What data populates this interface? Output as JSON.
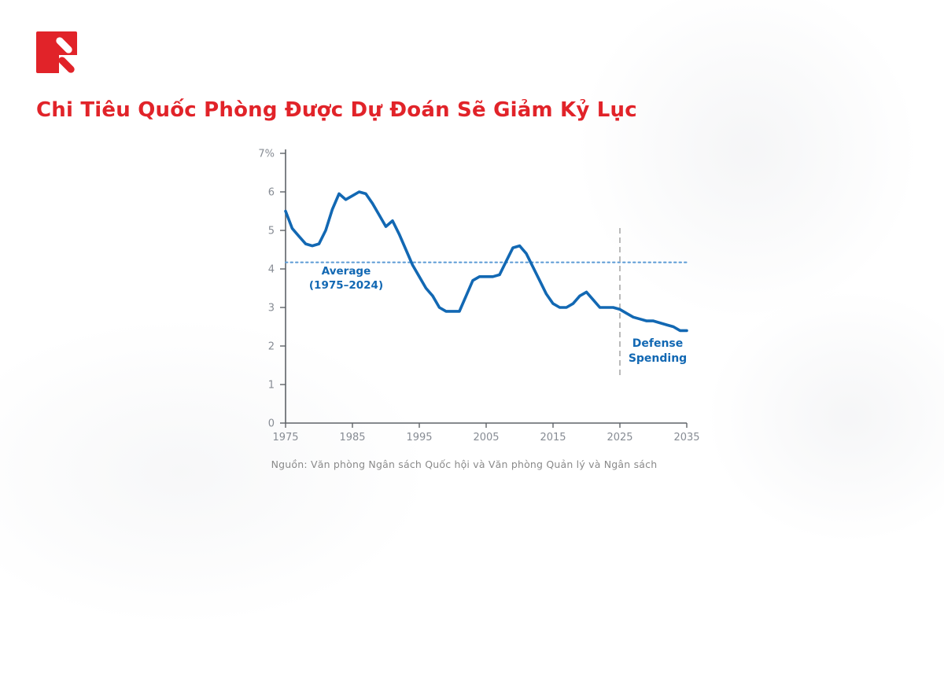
{
  "header": {
    "title": "Chi Tiêu Quốc Phòng Được Dự Đoán Sẽ Giảm Kỷ Lục"
  },
  "colors": {
    "brand_red": "#e12329",
    "line_blue": "#1268b3",
    "average_blue": "#5b9bd5",
    "divider_gray": "#b3b3b3",
    "axis_gray": "#5f6368",
    "tick_label_gray": "#878c94"
  },
  "source": {
    "text": "Nguồn: Văn phòng Ngân sách Quốc hội và Văn phòng Quản lý và Ngân sách"
  },
  "chart_data": {
    "type": "line",
    "title": "",
    "xlabel": "",
    "ylabel": "",
    "xlim": [
      1975,
      2035
    ],
    "ylim": [
      0,
      7
    ],
    "grid": false,
    "x_ticks": [
      1975,
      1985,
      1995,
      2005,
      2015,
      2025,
      2035
    ],
    "y_ticks": [
      0,
      1,
      2,
      3,
      4,
      5,
      6,
      7
    ],
    "y_tick_labels": [
      "0",
      "1",
      "2",
      "3",
      "4",
      "5",
      "6",
      "7%"
    ],
    "average_line": {
      "value": 4.17,
      "style": "dotted",
      "label": "Average",
      "sublabel": "(1975–2024)"
    },
    "projection_divider_year": 2025,
    "series_label_lines": [
      "Defense",
      "Spending"
    ],
    "series": [
      {
        "name": "Defense Spending",
        "x": [
          1975,
          1976,
          1977,
          1978,
          1979,
          1980,
          1981,
          1982,
          1983,
          1984,
          1985,
          1986,
          1987,
          1988,
          1989,
          1990,
          1991,
          1992,
          1993,
          1994,
          1995,
          1996,
          1997,
          1998,
          1999,
          2000,
          2001,
          2002,
          2003,
          2004,
          2005,
          2006,
          2007,
          2008,
          2009,
          2010,
          2011,
          2012,
          2013,
          2014,
          2015,
          2016,
          2017,
          2018,
          2019,
          2020,
          2021,
          2022,
          2023,
          2024,
          2025,
          2026,
          2027,
          2028,
          2029,
          2030,
          2031,
          2032,
          2033,
          2034,
          2035
        ],
        "values": [
          5.5,
          5.05,
          4.85,
          4.65,
          4.6,
          4.65,
          5.0,
          5.55,
          5.95,
          5.8,
          5.9,
          6.0,
          5.95,
          5.7,
          5.4,
          5.1,
          5.25,
          4.9,
          4.5,
          4.1,
          3.8,
          3.5,
          3.3,
          3.0,
          2.9,
          2.9,
          2.9,
          3.3,
          3.7,
          3.8,
          3.8,
          3.8,
          3.85,
          4.2,
          4.55,
          4.6,
          4.4,
          4.05,
          3.7,
          3.35,
          3.1,
          3.0,
          3.0,
          3.1,
          3.3,
          3.4,
          3.2,
          3.0,
          3.0,
          3.0,
          2.95,
          2.85,
          2.75,
          2.7,
          2.65,
          2.65,
          2.6,
          2.55,
          2.5,
          2.4,
          2.4
        ]
      }
    ]
  }
}
